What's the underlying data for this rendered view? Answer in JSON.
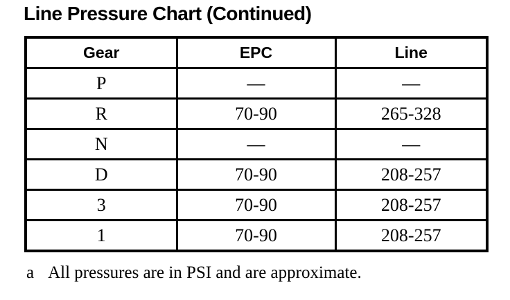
{
  "title": "Line Pressure Chart (Continued)",
  "table": {
    "columns": [
      "Gear",
      "EPC",
      "Line"
    ],
    "rows": [
      {
        "gear": "P",
        "epc": "—",
        "line": "—"
      },
      {
        "gear": "R",
        "epc": "70-90",
        "line": "265-328"
      },
      {
        "gear": "N",
        "epc": "—",
        "line": "—"
      },
      {
        "gear": "D",
        "epc": "70-90",
        "line": "208-257"
      },
      {
        "gear": "3",
        "epc": "70-90",
        "line": "208-257"
      },
      {
        "gear": "1",
        "epc": "70-90",
        "line": "208-257"
      }
    ]
  },
  "footnote": {
    "marker": "a",
    "text": "All pressures are in PSI and are approximate."
  },
  "colors": {
    "text": "#000000",
    "background": "#ffffff",
    "border": "#000000"
  }
}
